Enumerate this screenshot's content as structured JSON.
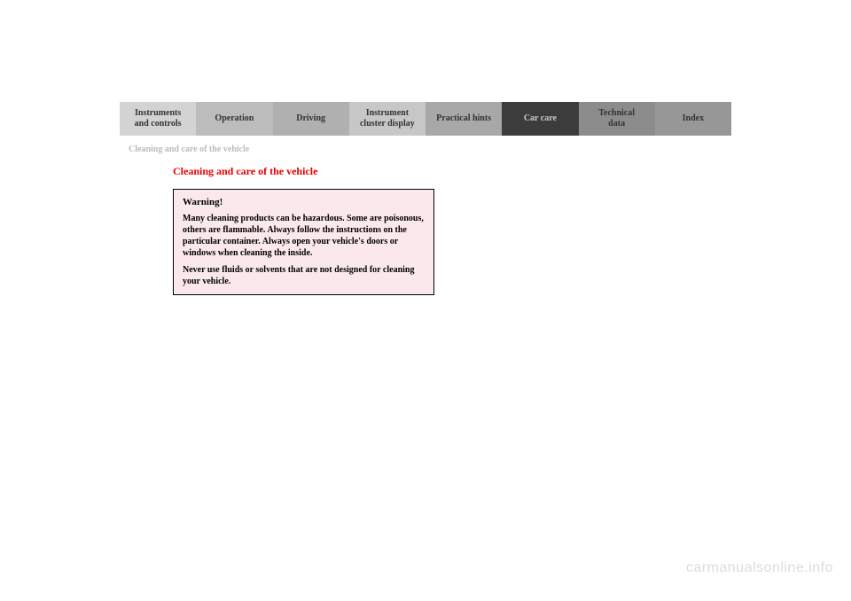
{
  "tabs": [
    {
      "label": "Instruments\nand controls",
      "bg": "#d3d3d3"
    },
    {
      "label": "Operation",
      "bg": "#bcbcbc"
    },
    {
      "label": "Driving",
      "bg": "#b0b0b0"
    },
    {
      "label": "Instrument\ncluster display",
      "bg": "#c7c7c7"
    },
    {
      "label": "Practical hints",
      "bg": "#a8a8a8"
    },
    {
      "label": "Car care",
      "bg": "#3c3c3c",
      "color": "#cccccc"
    },
    {
      "label": "Technical\ndata",
      "bg": "#8c8c8c"
    },
    {
      "label": "Index",
      "bg": "#979797"
    }
  ],
  "breadcrumb": "Cleaning and care of the vehicle",
  "section_title": "Cleaning and care of the vehicle",
  "warning": {
    "title": "Warning!",
    "para1": "Many cleaning products can be hazardous. Some are poisonous, others are flammable. Always follow the instructions on the particular container. Always open your vehicle's doors or windows when cleaning the inside.",
    "para2": "Never use fluids or solvents that are not designed for cleaning your vehicle."
  },
  "watermark": "carmanualsonline.info"
}
